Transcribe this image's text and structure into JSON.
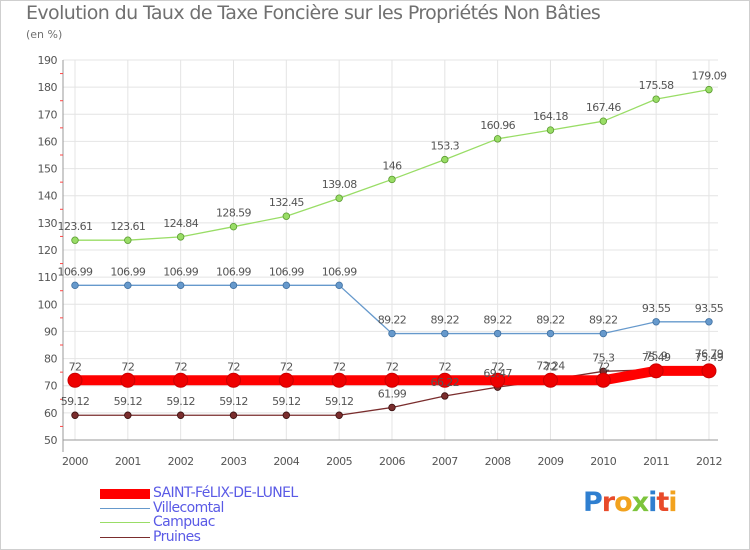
{
  "title": "Evolution du Taux de Taxe Foncière sur les Propriétés Non Bâties",
  "subtitle": "(en %)",
  "brand": {
    "logo_text": "Proxiti"
  },
  "chart_data": {
    "type": "line",
    "title": "Evolution du Taux de Taxe Foncière sur les Propriétés Non Bâties",
    "ylabel": "(en %)",
    "xlabel": "",
    "x": [
      "2000",
      "2001",
      "2002",
      "2003",
      "2004",
      "2005",
      "2006",
      "2007",
      "2008",
      "2009",
      "2010",
      "2011",
      "2012"
    ],
    "ylim": [
      50,
      190
    ],
    "yticks": [
      "50",
      "60",
      "70",
      "80",
      "90",
      "100",
      "110",
      "120",
      "130",
      "140",
      "150",
      "160",
      "170",
      "180",
      "190"
    ],
    "grid": true,
    "legend": "bottom-left",
    "series": [
      {
        "name": "SAINT-FéLIX-DE-LUNEL",
        "color": "#ff0000",
        "values": [
          72,
          72,
          72,
          72,
          72,
          72,
          72,
          72,
          72,
          72,
          72,
          75.49,
          75.49
        ],
        "labels": [
          "72",
          "72",
          "72",
          "72",
          "72",
          "72",
          "72",
          "72",
          "72",
          "72",
          "72",
          "75.49",
          "75.49"
        ]
      },
      {
        "name": "Villecomtal",
        "color": "#6699cc",
        "values": [
          106.99,
          106.99,
          106.99,
          106.99,
          106.99,
          106.99,
          89.22,
          89.22,
          89.22,
          89.22,
          89.22,
          93.55,
          93.55
        ],
        "labels": [
          "106.99",
          "106.99",
          "106.99",
          "106.99",
          "106.99",
          "106.99",
          "89.22",
          "89.22",
          "89.22",
          "89.22",
          "89.22",
          "93.55",
          "93.55"
        ]
      },
      {
        "name": "Campuac",
        "color": "#99dd66",
        "values": [
          123.61,
          123.61,
          124.84,
          128.59,
          132.45,
          139.08,
          146,
          153.3,
          160.96,
          164.18,
          167.46,
          175.58,
          179.09
        ],
        "labels": [
          "123.61",
          "123.61",
          "124.84",
          "128.59",
          "132.45",
          "139.08",
          "146",
          "153.3",
          "160.96",
          "164.18",
          "167.46",
          "175.58",
          "179.09"
        ]
      },
      {
        "name": "Pruines",
        "color": "#7a2d2d",
        "values": [
          59.12,
          59.12,
          59.12,
          59.12,
          59.12,
          59.12,
          61.99,
          66.22,
          69.47,
          72.24,
          75.3,
          75.9,
          76.79
        ],
        "labels": [
          "59.12",
          "59.12",
          "59.12",
          "59.12",
          "59.12",
          "59.12",
          "61.99",
          "66.22",
          "69.47",
          "72.24",
          "75.3",
          "75.9",
          "76.79"
        ]
      }
    ]
  }
}
